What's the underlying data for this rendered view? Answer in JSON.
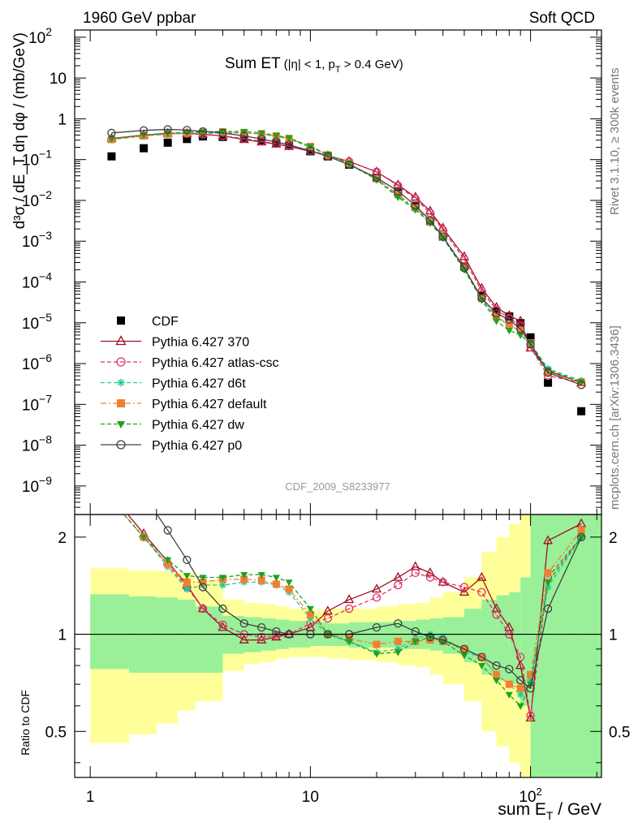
{
  "header": {
    "left": "1960 GeV ppbar",
    "right": "Soft QCD"
  },
  "side_text": {
    "rivet": "Rivet 3.1.10, ≥ 300k events",
    "mcplots": "mcplots.cern.ch [arXiv:1306.3436]"
  },
  "plot": {
    "title_main": "Sum ET",
    "title_cut": "(|η| < 1, p",
    "title_cut_sub": "T",
    "title_cut_end": " > 0.4 GeV)",
    "watermark": "CDF_2009_S8233977",
    "ylabel": "d³σ / dE_T dη dφ / (mb/GeV)"
  },
  "ratio": {
    "ylabel": "Ratio to CDF",
    "yticks": [
      "2",
      "1",
      "0.5"
    ]
  },
  "xaxis": {
    "label_main": "sum E",
    "label_sub": "T",
    "label_unit": " / GeV",
    "ticks": [
      "1",
      "10",
      "10"
    ],
    "tick_100_exp": "2"
  },
  "legend": [
    {
      "label": "CDF",
      "color": "#000000",
      "marker": "square-filled",
      "line": "none"
    },
    {
      "label": "Pythia 6.427 370",
      "color": "#a01020",
      "marker": "triangle-open",
      "line": "solid"
    },
    {
      "label": "Pythia 6.427 atlas-csc",
      "color": "#e0306a",
      "marker": "circle-open",
      "line": "dashed"
    },
    {
      "label": "Pythia 6.427 d6t",
      "color": "#20c8a0",
      "marker": "star",
      "line": "dashed"
    },
    {
      "label": "Pythia 6.427 default",
      "color": "#f08030",
      "marker": "square-filled",
      "line": "dashdot"
    },
    {
      "label": "Pythia 6.427 dw",
      "color": "#20a020",
      "marker": "triangle-down-filled",
      "line": "dashed"
    },
    {
      "label": "Pythia 6.427 p0",
      "color": "#404040",
      "marker": "circle-open",
      "line": "solid"
    }
  ],
  "chart_data": {
    "type": "line",
    "x_scale": "log",
    "y_scale": "log",
    "xlim": [
      0.85,
      210
    ],
    "ylim": [
      2e-10,
      150
    ],
    "ratio_ylim": [
      0.36,
      2.35
    ],
    "yticks_main": [
      "10^2",
      "10",
      "1",
      "10^-1",
      "10^-2",
      "10^-3",
      "10^-4",
      "10^-5",
      "10^-6",
      "10^-7",
      "10^-8",
      "10^-9"
    ],
    "x": [
      1.25,
      1.75,
      2.25,
      2.75,
      3.25,
      4,
      5,
      6,
      7,
      8,
      10,
      12,
      15,
      20,
      25,
      30,
      35,
      40,
      50,
      60,
      70,
      80,
      90,
      100,
      120,
      170
    ],
    "series": [
      {
        "name": "CDF",
        "values": [
          0.12,
          0.19,
          0.26,
          0.32,
          0.37,
          0.36,
          0.33,
          0.29,
          0.25,
          0.22,
          0.16,
          0.12,
          0.075,
          0.036,
          0.016,
          0.0072,
          0.0031,
          0.0013,
          0.00024,
          4.5e-05,
          1.9e-05,
          1.43e-05,
          9.8e-06,
          4.4e-06,
          3.4e-07,
          6.8e-08
        ]
      },
      {
        "name": "Pythia 6.427 370",
        "values": [
          0.33,
          0.4,
          0.44,
          0.44,
          0.42,
          0.38,
          0.31,
          0.27,
          0.24,
          0.21,
          0.16,
          0.125,
          0.09,
          0.05,
          0.024,
          0.012,
          0.0055,
          0.0021,
          0.00042,
          7e-05,
          2.4e-05,
          1.5e-05,
          1.1e-05,
          2.4e-06,
          6.6e-07,
          3.4e-07
        ]
      },
      {
        "name": "Pythia 6.427 atlas-csc",
        "values": [
          0.32,
          0.39,
          0.43,
          0.43,
          0.41,
          0.38,
          0.33,
          0.28,
          0.245,
          0.215,
          0.17,
          0.125,
          0.09,
          0.05,
          0.023,
          0.011,
          0.0049,
          0.0019,
          0.00036,
          6e-05,
          2.1e-05,
          1.3e-05,
          8.5e-06,
          2.5e-06,
          5e-07,
          3.5e-07
        ]
      },
      {
        "name": "Pythia 6.427 d6t",
        "values": [
          0.31,
          0.38,
          0.42,
          0.44,
          0.44,
          0.45,
          0.45,
          0.42,
          0.37,
          0.32,
          0.2,
          0.13,
          0.075,
          0.033,
          0.013,
          0.0061,
          0.0029,
          0.0012,
          0.00021,
          3.8e-05,
          1.3e-05,
          9e-06,
          6.2e-06,
          3.2e-06,
          7.5e-07,
          3.8e-07
        ]
      },
      {
        "name": "Pythia 6.427 default",
        "values": [
          0.31,
          0.38,
          0.42,
          0.45,
          0.47,
          0.48,
          0.45,
          0.43,
          0.38,
          0.33,
          0.21,
          0.13,
          0.08,
          0.034,
          0.014,
          0.0066,
          0.0031,
          0.0013,
          0.00023,
          4e-05,
          1.4e-05,
          9e-06,
          6.6e-06,
          3.2e-06,
          6e-07,
          3.5e-07
        ]
      },
      {
        "name": "Pythia 6.427 dw",
        "values": [
          0.32,
          0.4,
          0.44,
          0.47,
          0.48,
          0.49,
          0.49,
          0.45,
          0.39,
          0.34,
          0.21,
          0.135,
          0.08,
          0.032,
          0.012,
          0.0059,
          0.0028,
          0.0012,
          0.0002,
          3.6e-05,
          1.1e-05,
          6.5e-06,
          5e-06,
          3.1e-06,
          7e-07,
          3.6e-07
        ]
      },
      {
        "name": "Pythia 6.427 p0",
        "values": [
          0.45,
          0.52,
          0.55,
          0.53,
          0.49,
          0.45,
          0.38,
          0.32,
          0.27,
          0.23,
          0.165,
          0.12,
          0.075,
          0.036,
          0.017,
          0.0075,
          0.0032,
          0.0013,
          0.00022,
          4e-05,
          1.7e-05,
          1.2e-05,
          7e-06,
          3e-06,
          6e-07,
          3e-07
        ]
      }
    ],
    "ratio_series": [
      {
        "name": "Pythia 6.427 370",
        "values": [
          2.7,
          2.05,
          1.68,
          1.42,
          1.2,
          1.05,
          0.96,
          0.96,
          0.98,
          1.0,
          1.05,
          1.18,
          1.28,
          1.38,
          1.5,
          1.62,
          1.55,
          1.45,
          1.35,
          1.5,
          1.2,
          1.05,
          0.8,
          0.55,
          1.95,
          2.2
        ]
      },
      {
        "name": "Pythia 6.427 atlas-csc",
        "values": [
          2.6,
          2.0,
          1.65,
          1.4,
          1.2,
          1.07,
          1.0,
          0.98,
          0.99,
          1.0,
          1.08,
          1.12,
          1.2,
          1.3,
          1.42,
          1.55,
          1.5,
          1.45,
          1.4,
          1.35,
          1.15,
          1.0,
          0.85,
          0.56,
          1.5,
          2.0
        ]
      },
      {
        "name": "Pythia 6.427 d6t",
        "values": [
          2.6,
          2.0,
          1.62,
          1.38,
          1.42,
          1.42,
          1.45,
          1.45,
          1.42,
          1.35,
          1.12,
          1.0,
          0.95,
          0.88,
          0.9,
          0.97,
          1.0,
          0.98,
          0.88,
          0.85,
          0.75,
          0.7,
          0.65,
          0.72,
          1.4,
          2.0
        ]
      },
      {
        "name": "Pythia 6.427 default",
        "values": [
          2.6,
          2.0,
          1.65,
          1.45,
          1.45,
          1.48,
          1.48,
          1.47,
          1.43,
          1.38,
          1.15,
          1.0,
          0.97,
          0.93,
          0.95,
          0.95,
          0.96,
          0.95,
          0.9,
          0.85,
          0.75,
          0.7,
          0.68,
          0.75,
          1.55,
          2.1
        ]
      },
      {
        "name": "Pythia 6.427 dw",
        "values": [
          2.6,
          2.0,
          1.7,
          1.52,
          1.5,
          1.5,
          1.53,
          1.53,
          1.5,
          1.45,
          1.2,
          1.0,
          0.95,
          0.87,
          0.88,
          0.95,
          0.98,
          0.95,
          0.86,
          0.8,
          0.72,
          0.65,
          0.6,
          0.7,
          1.45,
          2.0
        ]
      },
      {
        "name": "Pythia 6.427 p0",
        "values": [
          3.2,
          2.7,
          2.1,
          1.7,
          1.4,
          1.2,
          1.08,
          1.05,
          1.02,
          1.0,
          1.0,
          1.0,
          1.0,
          1.05,
          1.08,
          1.02,
          0.98,
          0.96,
          0.9,
          0.85,
          0.8,
          0.78,
          0.72,
          0.68,
          1.2,
          2.0
        ]
      }
    ],
    "band_x_edges": [
      1,
      1.5,
      2,
      2.5,
      3,
      4,
      5,
      6,
      7,
      8,
      10,
      12,
      15,
      20,
      25,
      30,
      35,
      40,
      50,
      60,
      70,
      80,
      90,
      100,
      150,
      210
    ],
    "band_green": [
      [
        0.78,
        1.33
      ],
      [
        0.76,
        1.31
      ],
      [
        0.76,
        1.3
      ],
      [
        0.76,
        1.28
      ],
      [
        0.76,
        1.22
      ],
      [
        0.87,
        1.14
      ],
      [
        0.88,
        1.13
      ],
      [
        0.89,
        1.12
      ],
      [
        0.9,
        1.11
      ],
      [
        0.91,
        1.1
      ],
      [
        0.92,
        1.09
      ],
      [
        0.92,
        1.08
      ],
      [
        0.91,
        1.09
      ],
      [
        0.91,
        1.09
      ],
      [
        0.9,
        1.1
      ],
      [
        0.9,
        1.11
      ],
      [
        0.89,
        1.12
      ],
      [
        0.87,
        1.13
      ],
      [
        0.82,
        1.2
      ],
      [
        0.75,
        1.28
      ],
      [
        0.72,
        1.32
      ],
      [
        0.7,
        1.35
      ],
      [
        0.6,
        1.5
      ],
      [
        0.36,
        2.35
      ],
      [
        0.36,
        2.35
      ]
    ],
    "band_yellow": [
      [
        0.46,
        1.6
      ],
      [
        0.49,
        1.58
      ],
      [
        0.53,
        1.57
      ],
      [
        0.58,
        1.55
      ],
      [
        0.62,
        1.47
      ],
      [
        0.77,
        1.28
      ],
      [
        0.81,
        1.25
      ],
      [
        0.82,
        1.24
      ],
      [
        0.84,
        1.22
      ],
      [
        0.85,
        1.2
      ],
      [
        0.85,
        1.19
      ],
      [
        0.84,
        1.2
      ],
      [
        0.83,
        1.2
      ],
      [
        0.82,
        1.22
      ],
      [
        0.8,
        1.24
      ],
      [
        0.79,
        1.25
      ],
      [
        0.75,
        1.3
      ],
      [
        0.7,
        1.35
      ],
      [
        0.62,
        1.5
      ],
      [
        0.5,
        1.8
      ],
      [
        0.45,
        2.0
      ],
      [
        0.4,
        2.2
      ],
      [
        0.36,
        2.35
      ],
      [
        0.36,
        2.35
      ],
      [
        0.36,
        2.35
      ]
    ]
  }
}
